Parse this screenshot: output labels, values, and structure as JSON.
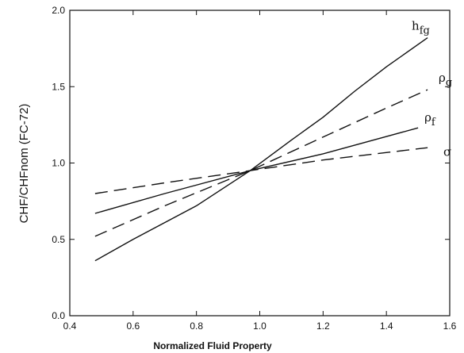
{
  "chart_data": {
    "type": "line",
    "title": "",
    "xlabel": "Normalized Fluid Property",
    "ylabel": "CHF/CHFnom (FC-72)",
    "xlim": [
      0.4,
      1.6
    ],
    "ylim": [
      0.0,
      2.0
    ],
    "xticks": [
      "0.4",
      "0.6",
      "0.8",
      "1.0",
      "1.2",
      "1.4",
      "1.6"
    ],
    "yticks": [
      "0.0",
      "0.5",
      "1.0",
      "1.5",
      "2.0"
    ],
    "grid": false,
    "series": [
      {
        "name": "hfg",
        "label_main": "h",
        "label_sub": "fg",
        "style": "solid",
        "x": [
          0.48,
          0.6,
          0.8,
          0.97,
          1.1,
          1.2,
          1.3,
          1.4,
          1.53
        ],
        "y": [
          0.36,
          0.5,
          0.72,
          0.95,
          1.15,
          1.3,
          1.47,
          1.63,
          1.82
        ]
      },
      {
        "name": "ρg",
        "label_main": "ρ",
        "label_sub": "g",
        "style": "dashed",
        "x": [
          0.48,
          0.7,
          0.97,
          1.2,
          1.4,
          1.53
        ],
        "y": [
          0.52,
          0.72,
          0.95,
          1.17,
          1.36,
          1.48
        ]
      },
      {
        "name": "ρf",
        "label_main": "ρ",
        "label_sub": "f",
        "style": "solid",
        "x": [
          0.48,
          0.7,
          0.97,
          1.2,
          1.5
        ],
        "y": [
          0.67,
          0.8,
          0.95,
          1.06,
          1.23
        ]
      },
      {
        "name": "σ",
        "label_main": "σ",
        "label_sub": "",
        "style": "dashed",
        "x": [
          0.48,
          0.7,
          0.97,
          1.2,
          1.53
        ],
        "y": [
          0.8,
          0.87,
          0.95,
          1.02,
          1.1
        ]
      }
    ]
  }
}
